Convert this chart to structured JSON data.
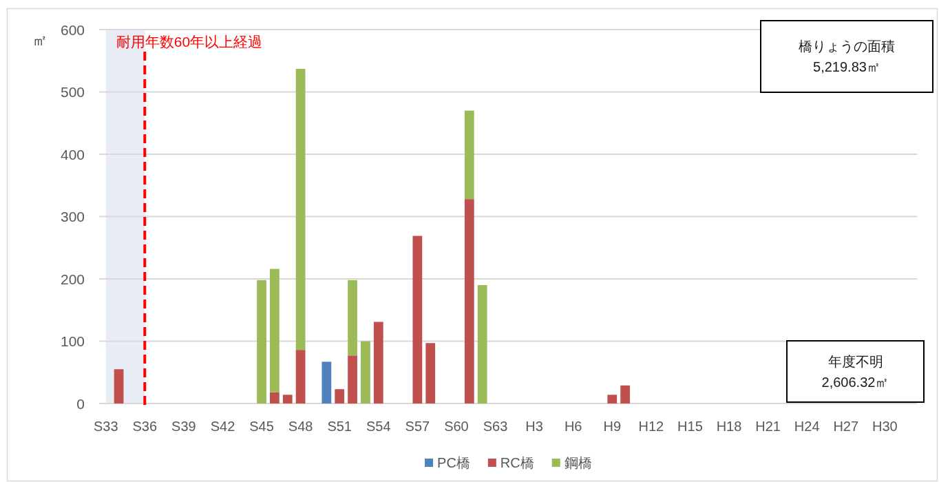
{
  "chart_data": {
    "type": "bar",
    "stacked": true,
    "categories": [
      "S33",
      null,
      null,
      "S36",
      null,
      null,
      "S39",
      null,
      null,
      "S42",
      null,
      null,
      "S45",
      null,
      null,
      "S48",
      null,
      null,
      "S51",
      null,
      null,
      "S54",
      null,
      null,
      "S57",
      null,
      null,
      "S60",
      null,
      null,
      "S63",
      null,
      null,
      "H3",
      null,
      null,
      "H6",
      null,
      null,
      "H9",
      null,
      null,
      "H12",
      null,
      null,
      "H15",
      null,
      null,
      "H18",
      null,
      null,
      "H21",
      null,
      null,
      "H24",
      null,
      null,
      "H27",
      null,
      null,
      "H30",
      null,
      null
    ],
    "series": [
      {
        "name": "PC橋",
        "color": "#4f81bd",
        "values": [
          null,
          null,
          null,
          null,
          null,
          null,
          null,
          null,
          null,
          null,
          null,
          null,
          null,
          null,
          null,
          null,
          null,
          67,
          null,
          null,
          null,
          null,
          null,
          null,
          null,
          null,
          null,
          null,
          null,
          null,
          null,
          null,
          null,
          null,
          null,
          null,
          null,
          null,
          null,
          null,
          null,
          null,
          null,
          null,
          null,
          null,
          null,
          null,
          null,
          null,
          null,
          null,
          null,
          null,
          null,
          null,
          null,
          null,
          null,
          null,
          null,
          null,
          null
        ]
      },
      {
        "name": "RC橋",
        "color": "#c0504d",
        "values": [
          null,
          55,
          null,
          null,
          null,
          null,
          null,
          null,
          null,
          null,
          null,
          null,
          null,
          18,
          14,
          86,
          null,
          null,
          23,
          77,
          null,
          131,
          null,
          null,
          269,
          97,
          null,
          null,
          328,
          null,
          null,
          null,
          null,
          null,
          null,
          null,
          null,
          null,
          null,
          14,
          29,
          null,
          null,
          null,
          null,
          null,
          null,
          null,
          null,
          null,
          null,
          null,
          null,
          null,
          null,
          null,
          null,
          null,
          null,
          null,
          null,
          null,
          null
        ]
      },
      {
        "name": "鋼橋",
        "color": "#9bbb59",
        "values": [
          null,
          null,
          null,
          null,
          null,
          null,
          null,
          null,
          null,
          null,
          null,
          null,
          198,
          198,
          null,
          451,
          null,
          null,
          null,
          121,
          100,
          null,
          null,
          null,
          null,
          null,
          null,
          null,
          142,
          190,
          null,
          null,
          null,
          null,
          null,
          null,
          null,
          null,
          null,
          null,
          null,
          null,
          null,
          null,
          null,
          null,
          null,
          null,
          null,
          null,
          null,
          null,
          null,
          null,
          null,
          null,
          null,
          null,
          null,
          null,
          null,
          null,
          null
        ]
      }
    ],
    "ylabel": "㎡",
    "ylim": [
      0,
      600
    ],
    "yticks": [
      0,
      100,
      200,
      300,
      400,
      500,
      600
    ],
    "grid": "y",
    "legend": "bottom",
    "bands": [
      {
        "axis": "x",
        "from": "S33",
        "to": "S36",
        "color": "#e8edf5"
      }
    ],
    "ref_lines": [
      {
        "axis": "x",
        "value": "S36",
        "label": "耐用年数60年以上経過",
        "color": "#ff0000",
        "line_style": "dashed"
      }
    ],
    "annotations": [
      "橋りょうの面積\n5,219.83㎡",
      "年度不明\n2,606.32㎡"
    ]
  }
}
